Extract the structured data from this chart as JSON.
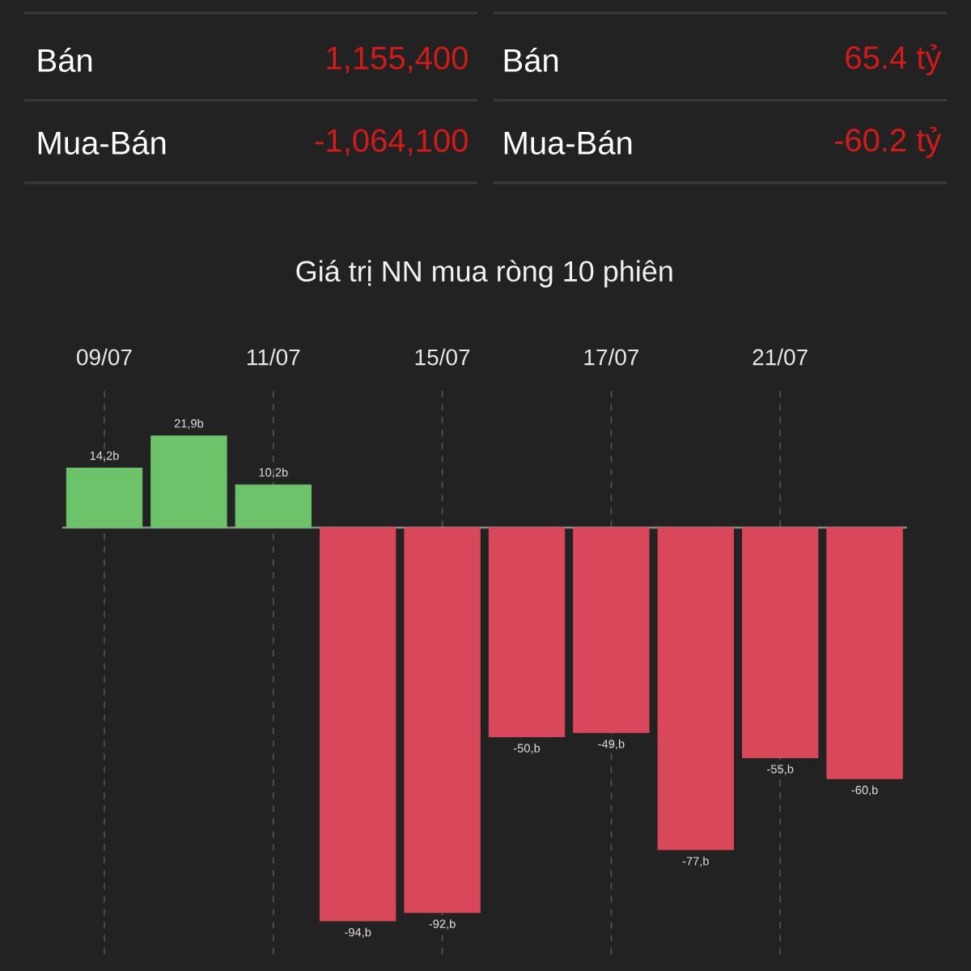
{
  "chart_data": [
    {
      "type": "other",
      "annotations": [
        "Bán",
        "1,155,400",
        "Bán",
        "65.4 tỷ",
        "Mua-Bán",
        "-1,064,100",
        "Mua-Bán",
        "-60.2 tỷ"
      ]
    },
    {
      "type": "bar",
      "title": "Giá trị NN mua ròng 10 phiên",
      "categories": [
        "09/07",
        null,
        "11/07",
        null,
        "15/07",
        null,
        "17/07",
        null,
        "21/07",
        null
      ],
      "values": [
        14.2,
        21.9,
        10.2,
        -94,
        -92,
        -50,
        -49,
        -77,
        -55,
        -60
      ],
      "value_labels": [
        "14,2b",
        "21,9b",
        "10,2b",
        "-94,b",
        "-92,b",
        "-50,b",
        "-49,b",
        "-77,b",
        "-55,b",
        "-60,b"
      ],
      "colors": [
        "#6cc36a",
        "#6cc36a",
        "#6cc36a",
        "#d9475a",
        "#d9475a",
        "#d9475a",
        "#d9475a",
        "#d9475a",
        "#d9475a",
        "#d9475a"
      ],
      "grid": "x"
    }
  ]
}
